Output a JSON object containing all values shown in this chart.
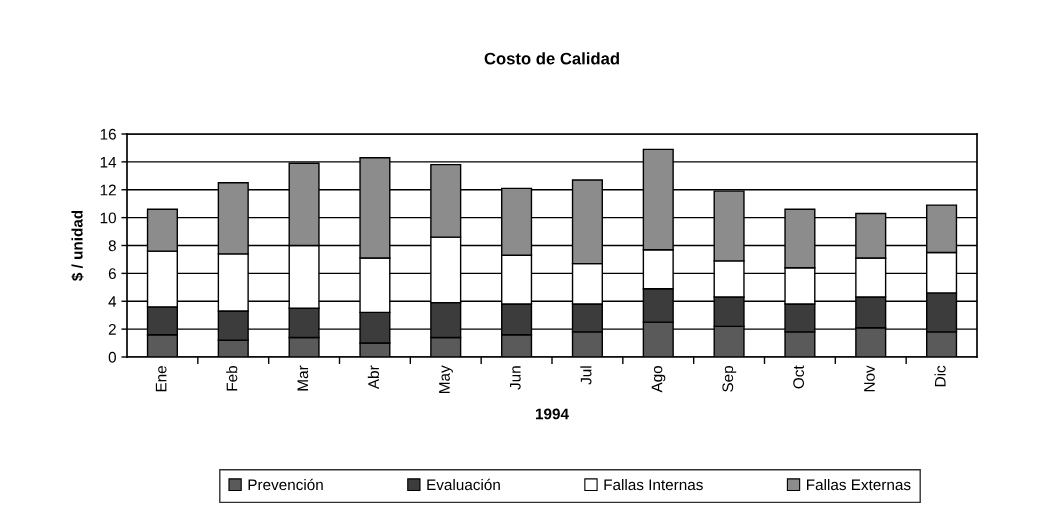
{
  "chart_data": {
    "type": "bar",
    "title": "Costo de Calidad",
    "xlabel": "1994",
    "ylabel": "$ / unidad",
    "categories": [
      "Ene",
      "Feb",
      "Mar",
      "Abr",
      "May",
      "Jun",
      "Jul",
      "Ago",
      "Sep",
      "Oct",
      "Nov",
      "Dic"
    ],
    "stacked": true,
    "series": [
      {
        "name": "Prevención",
        "color": "#5a5a5a",
        "values": [
          1.6,
          1.2,
          1.4,
          1.0,
          1.4,
          1.6,
          1.8,
          2.5,
          2.2,
          1.8,
          2.1,
          1.8
        ]
      },
      {
        "name": "Evaluación",
        "color": "#3c3c3c",
        "values": [
          2.0,
          2.1,
          2.1,
          2.2,
          2.5,
          2.2,
          2.0,
          2.4,
          2.1,
          2.0,
          2.2,
          2.8
        ]
      },
      {
        "name": "Fallas Internas",
        "color": "#ffffff",
        "values": [
          4.0,
          4.1,
          4.5,
          3.9,
          4.7,
          3.5,
          2.9,
          2.8,
          2.6,
          2.6,
          2.8,
          2.9
        ]
      },
      {
        "name": "Fallas Externas",
        "color": "#8c8c8c",
        "values": [
          3.0,
          5.1,
          5.9,
          7.2,
          5.2,
          4.8,
          6.0,
          7.2,
          5.0,
          4.2,
          3.2,
          3.4
        ]
      }
    ],
    "ylim": [
      0,
      16
    ],
    "yticks": [
      0,
      2,
      4,
      6,
      8,
      10,
      12,
      14,
      16
    ],
    "grid": "y",
    "legend": "bottom"
  }
}
